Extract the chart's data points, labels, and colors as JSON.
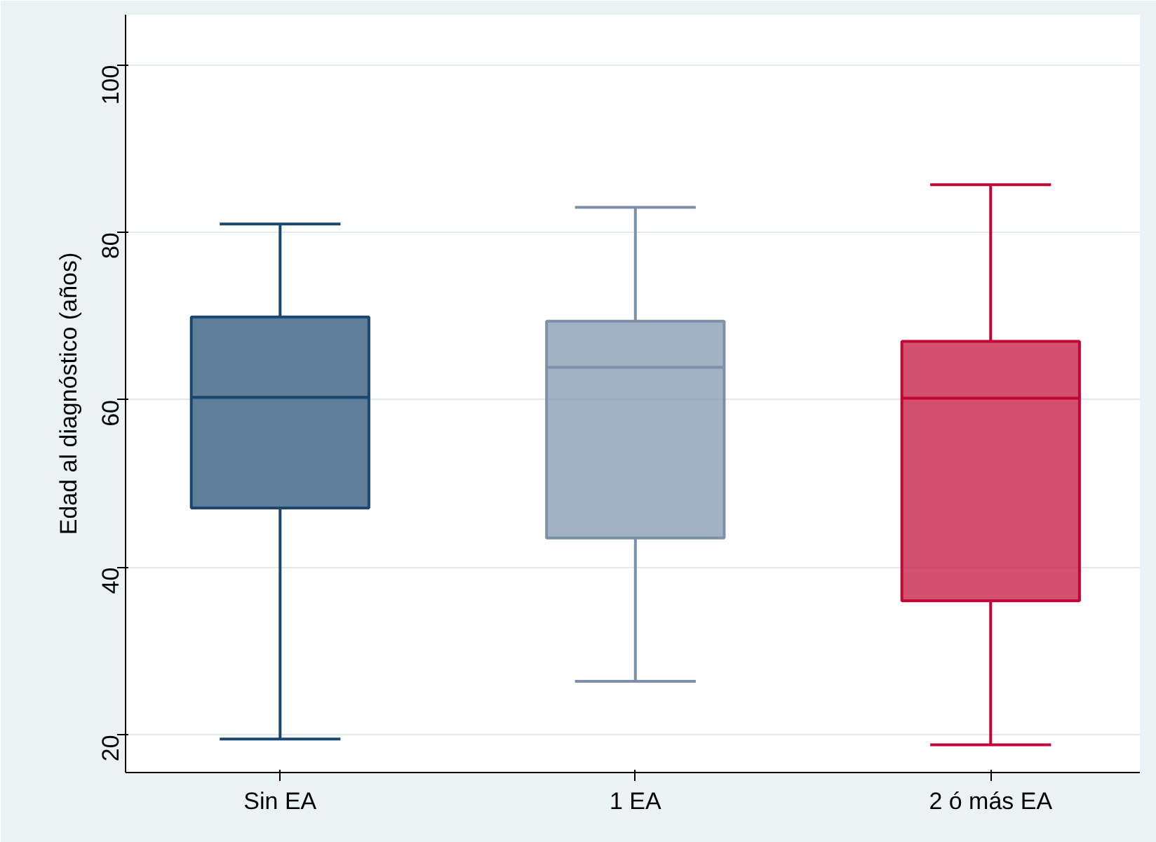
{
  "chart_data": {
    "type": "box",
    "ylabel": "Edad al diagnóstico (años)",
    "categories": [
      "Sin EA",
      "1 EA",
      "2 ó más EA"
    ],
    "boxes": [
      {
        "low": 19.5,
        "q1": 47.1,
        "median": 60.3,
        "q3": 69.9,
        "high": 81.0
      },
      {
        "low": 26.4,
        "q1": 43.5,
        "median": 63.9,
        "q3": 69.4,
        "high": 83.0
      },
      {
        "low": 18.8,
        "q1": 36.0,
        "median": 60.2,
        "q3": 67.0,
        "high": 85.7
      }
    ],
    "colors": [
      "#1a476f",
      "#7c91a9",
      "#c10534"
    ],
    "ylim": [
      15.5,
      106
    ],
    "yticks": [
      20,
      40,
      60,
      80,
      100
    ],
    "grid": "y"
  }
}
